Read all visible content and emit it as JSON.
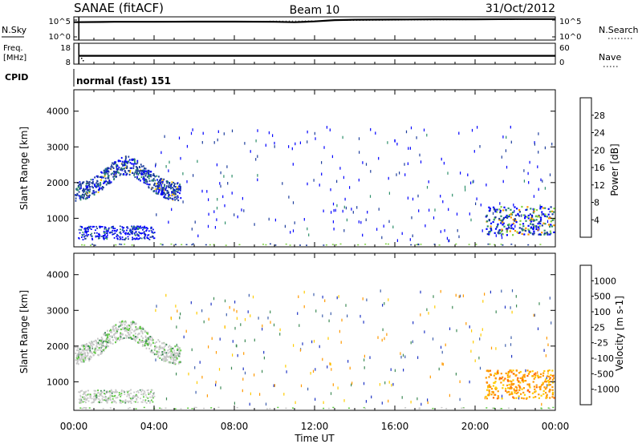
{
  "header": {
    "title": "SANAE (fitACF)",
    "beam": "Beam 10",
    "date": "31/Oct/2012"
  },
  "panel_labels": {
    "nsky": "N.Sky",
    "nsearch": "N.Search",
    "freq_line1": "Freq.",
    "freq_line2": "[MHz]",
    "nave": "Nave",
    "cpid": "CPID",
    "cpid_value": "normal (fast) 151"
  },
  "chart_data": [
    {
      "type": "line",
      "panel": "noise",
      "left_ticks": [
        "10^5",
        "10^0"
      ],
      "right_ticks": [
        "10^5",
        "10^0"
      ],
      "series": [
        {
          "name": "N.Sky",
          "x": [
            0,
            2,
            4,
            6,
            8,
            10,
            11,
            12,
            13,
            14,
            16,
            18,
            20,
            22,
            24
          ],
          "y": [
            4.3,
            4.4,
            4.4,
            4.45,
            4.45,
            4.4,
            4.3,
            4.5,
            4.8,
            4.9,
            4.95,
            5.0,
            5.0,
            5.05,
            5.05
          ]
        },
        {
          "name": "N.Search",
          "x": [
            0,
            24
          ],
          "y": [
            4.3,
            5.0
          ]
        }
      ],
      "ylim": [
        0,
        5.6
      ]
    },
    {
      "type": "line",
      "panel": "frequency",
      "left_ticks": [
        "18",
        "8"
      ],
      "right_ticks": [
        "60",
        "0"
      ],
      "series": [
        {
          "name": "Freq.",
          "x": [
            0.25,
            24
          ],
          "y": [
            12,
            12
          ]
        },
        {
          "name": "Nave",
          "x": [
            0.25,
            24
          ],
          "y": [
            24,
            24
          ]
        }
      ],
      "ylim": [
        8,
        18
      ]
    },
    {
      "type": "heatmap",
      "panel": "power",
      "xlabel": "",
      "ylabel": "Slant Range [km]",
      "ylim": [
        200,
        4600
      ],
      "xlim": [
        0,
        24
      ],
      "yticks": [
        1000,
        2000,
        3000,
        4000
      ],
      "colorbar": {
        "label": "Power [dB]",
        "ticks": [
          "4",
          "8",
          "12",
          "16",
          "20",
          "24",
          "28"
        ],
        "colors": [
          "#0000ff",
          "#1d3d9c",
          "#2d8f6a",
          "#7ed142",
          "#ffcc00",
          "#ff9900",
          "#ff5500",
          "#ee0000"
        ]
      }
    },
    {
      "type": "heatmap",
      "panel": "velocity",
      "xlabel": "Time UT",
      "ylabel": "Slant Range [km]",
      "ylim": [
        200,
        4600
      ],
      "xlim": [
        0,
        24
      ],
      "yticks": [
        1000,
        2000,
        3000,
        4000
      ],
      "xticks": [
        "00:00",
        "04:00",
        "08:00",
        "12:00",
        "16:00",
        "20:00",
        "00:00"
      ],
      "colorbar": {
        "label": "Velocity [m s-1]",
        "ticks": [
          "1000",
          "500",
          "100",
          "25",
          "-25",
          "-100",
          "-500",
          "-1000"
        ],
        "colors": [
          "#1f35c4",
          "#3f60ad",
          "#3e8a56",
          "#58c83a",
          "#c8c8c8",
          "#ffcc00",
          "#ff9900",
          "#ff6600",
          "#ee0000"
        ]
      }
    }
  ]
}
